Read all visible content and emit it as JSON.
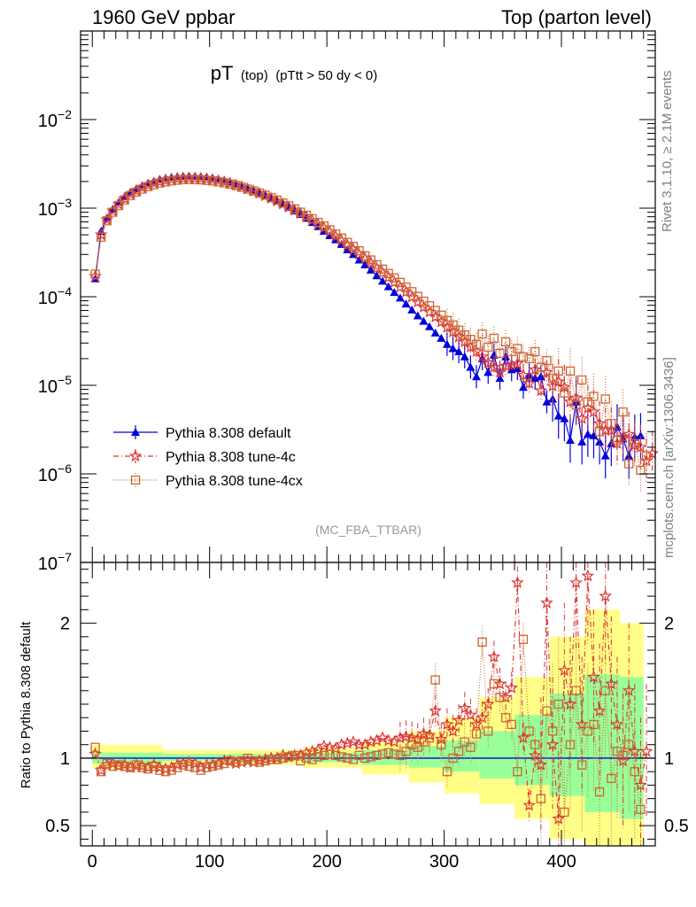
{
  "header": {
    "left": "1960 GeV ppbar",
    "right": "Top (parton level)",
    "side_rivet": "Rivet 3.1.10, ≥ 2.1M events",
    "side_mcplots": "mcplots.cern.ch [arXiv:1306.3436]"
  },
  "main": {
    "title_main": "pT",
    "title_sub": "(top)",
    "title_cut": "(pTtt > 50 dy < 0)",
    "watermark": "(MC_FBA_TTBAR)"
  },
  "ratio": {
    "ylabel": "Ratio to Pythia 8.308 default"
  },
  "colors": {
    "default": "#0000dd",
    "tune4c": "#dd3333",
    "tune4cx": "#cc6633",
    "band_green": "#99ff99",
    "band_yellow": "#ffff88"
  },
  "chart_data": [
    {
      "type": "line",
      "yscale": "log",
      "xlim": [
        -10,
        480
      ],
      "ylim": [
        1e-07,
        0.1
      ],
      "y_ticks": [
        "10^-7",
        "10^-6",
        "10^-5",
        "10^-4",
        "10^-3",
        "10^-2"
      ],
      "legend": "bottom-left",
      "x": [
        2.5,
        7.5,
        12.5,
        17.5,
        22.5,
        27.5,
        32.5,
        37.5,
        42.5,
        47.5,
        52.5,
        57.5,
        62.5,
        67.5,
        72.5,
        77.5,
        82.5,
        87.5,
        92.5,
        97.5,
        102.5,
        107.5,
        112.5,
        117.5,
        122.5,
        127.5,
        132.5,
        137.5,
        142.5,
        147.5,
        152.5,
        157.5,
        162.5,
        167.5,
        172.5,
        177.5,
        182.5,
        187.5,
        192.5,
        197.5,
        202.5,
        207.5,
        212.5,
        217.5,
        222.5,
        227.5,
        232.5,
        237.5,
        242.5,
        247.5,
        252.5,
        257.5,
        262.5,
        267.5,
        272.5,
        277.5,
        282.5,
        287.5,
        292.5,
        297.5,
        302.5,
        307.5,
        312.5,
        317.5,
        322.5,
        327.5,
        332.5,
        337.5,
        342.5,
        347.5,
        352.5,
        357.5,
        362.5,
        367.5,
        372.5,
        377.5,
        382.5,
        387.5,
        392.5,
        397.5,
        402.5,
        407.5,
        412.5,
        417.5,
        422.5,
        427.5,
        432.5,
        437.5,
        442.5,
        447.5,
        452.5,
        457.5,
        462.5,
        467.5,
        472.5,
        477.5
      ],
      "series": [
        {
          "name": "Pythia 8.308 default",
          "values": [
            0.00016,
            0.00055,
            0.00078,
            0.00098,
            0.00117,
            0.00135,
            0.00152,
            0.00166,
            0.0018,
            0.00192,
            0.00202,
            0.00212,
            0.00218,
            0.00224,
            0.00228,
            0.0023,
            0.00231,
            0.0023,
            0.00228,
            0.00225,
            0.0022,
            0.00214,
            0.00207,
            0.00199,
            0.0019,
            0.00181,
            0.00171,
            0.00161,
            0.00151,
            0.00141,
            0.00131,
            0.00121,
            0.00111,
            0.00102,
            0.00093,
            0.00085,
            0.00077,
            0.00069,
            0.00062,
            0.00055,
            0.00049,
            0.00044,
            0.00039,
            0.00034,
            0.0003,
            0.00026,
            0.00023,
            0.0002,
            0.000173,
            0.00015,
            0.00013,
            0.000112,
            9.7e-05,
            8.3e-05,
            7.1e-05,
            6.1e-05,
            5.3e-05,
            4.6e-05,
            3.9e-05,
            3.4e-05,
            2.9e-05,
            2.6e-05,
            2.4e-05,
            2.1e-05,
            1.6e-05,
            1.25e-05,
            2e-05,
            1.4e-05,
            2.2e-05,
            1.2e-05,
            2.1e-05,
            1.5e-05,
            1.55e-05,
            9.5e-06,
            1.3e-05,
            1.2e-05,
            1.25e-05,
            6.5e-06,
            7e-06,
            4.5e-06,
            4.2e-06,
            2.4e-06,
            6.5e-06,
            2.3e-06,
            2.8e-06,
            2.7e-06,
            2.3e-06,
            1.6e-06,
            2.2e-06,
            3.4e-06,
            2.5e-06,
            1.6e-06,
            2.6e-06,
            2.7e-06,
            null,
            null
          ]
        },
        {
          "name": "Pythia 8.308 tune-4c",
          "values": [
            0.00017,
            0.0005,
            0.00074,
            0.00093,
            0.00111,
            0.00128,
            0.00144,
            0.00157,
            0.0017,
            0.00181,
            0.00191,
            0.00198,
            0.00205,
            0.0021,
            0.00214,
            0.00216,
            0.00217,
            0.00216,
            0.00215,
            0.00212,
            0.00208,
            0.00203,
            0.00197,
            0.0019,
            0.00182,
            0.00174,
            0.00165,
            0.00156,
            0.00147,
            0.00138,
            0.00129,
            0.0012,
            0.00111,
            0.00103,
            0.00095,
            0.00087,
            0.0008,
            0.00073,
            0.00066,
            0.0006,
            0.00054,
            0.00048,
            0.00043,
            0.00038,
            0.00034,
            0.0003,
            0.00027,
            0.00024,
            0.00021,
            0.000185,
            0.000165,
            0.000145,
            0.000128,
            0.000113,
            9.9e-05,
            8.7e-05,
            7.6e-05,
            6.7e-05,
            5.9e-05,
            5.2e-05,
            4.5e-05,
            4e-05,
            3.5e-05,
            3.1e-05,
            2.7e-05,
            2.4e-05,
            2.1e-05,
            1.8e-05,
            1.6e-05,
            1.4e-05,
            1.65e-05,
            1.7e-05,
            1.75e-05,
            1.3e-05,
            1.05e-05,
            1.5e-05,
            8.7e-06,
            1.4e-05,
            9.8e-06,
            1.1e-05,
            9.5e-06,
            6.5e-06,
            7.2e-06,
            4.2e-06,
            5.5e-06,
            5e-06,
            3.7e-06,
            3.1e-06,
            3.1e-06,
            2.2e-06,
            2.6e-06,
            2.8e-06,
            2.1e-06,
            2e-06,
            1.4e-06,
            1.7e-06
          ]
        },
        {
          "name": "Pythia 8.308 tune-4cx",
          "values": [
            0.00018,
            0.00047,
            0.00072,
            0.0009,
            0.00107,
            0.00124,
            0.00139,
            0.00152,
            0.00164,
            0.00175,
            0.00184,
            0.00192,
            0.00198,
            0.00203,
            0.00207,
            0.0021,
            0.00211,
            0.0021,
            0.00209,
            0.00206,
            0.00203,
            0.00198,
            0.00193,
            0.00187,
            0.0018,
            0.00172,
            0.00164,
            0.00156,
            0.00148,
            0.0014,
            0.00131,
            0.00123,
            0.00114,
            0.00106,
            0.00098,
            0.0009,
            0.00083,
            0.00076,
            0.00069,
            0.00063,
            0.00057,
            0.00051,
            0.00046,
            0.00041,
            0.00037,
            0.00033,
            0.00029,
            0.00026,
            0.00023,
            0.000205,
            0.000183,
            0.000163,
            0.000145,
            0.000128,
            0.000114,
            0.000101,
            8.9e-05,
            7.9e-05,
            7e-05,
            6.2e-05,
            5.4e-05,
            4.8e-05,
            4.2e-05,
            3.7e-05,
            3.3e-05,
            2.9e-05,
            3.8e-05,
            2.7e-05,
            3.4e-05,
            2.3e-05,
            3.1e-05,
            2.4e-05,
            2.6e-05,
            2.1e-05,
            2e-05,
            2.4e-05,
            1.6e-05,
            1.9e-05,
            1.2e-05,
            1.45e-05,
            8.2e-06,
            1.45e-05,
            6e-06,
            1.15e-05,
            6.5e-06,
            7.5e-06,
            3e-06,
            7e-06,
            3.7e-06,
            2.4e-06,
            5e-06,
            1.3e-06,
            2.2e-06,
            1.1e-06,
            1.6e-06,
            null
          ]
        }
      ]
    },
    {
      "type": "line",
      "ylabel": "Ratio to Pythia 8.308 default",
      "xlim": [
        -10,
        480
      ],
      "ylim": [
        0.35,
        2.45
      ],
      "x_ticks": [
        0,
        100,
        200,
        300,
        400
      ],
      "y_ticks": [
        0.5,
        1,
        2
      ],
      "reference_line": 1,
      "bands": {
        "x_edges": [
          0,
          60,
          120,
          180,
          230,
          270,
          300,
          330,
          360,
          390,
          420,
          450,
          470
        ],
        "green_lo": [
          0.96,
          0.98,
          0.98,
          0.97,
          0.95,
          0.93,
          0.9,
          0.85,
          0.8,
          0.72,
          0.6,
          0.55
        ],
        "green_hi": [
          1.04,
          1.03,
          1.03,
          1.04,
          1.06,
          1.09,
          1.13,
          1.2,
          1.32,
          1.48,
          1.62,
          1.6
        ],
        "yellow_lo": [
          0.92,
          0.95,
          0.95,
          0.93,
          0.88,
          0.82,
          0.74,
          0.66,
          0.55,
          0.4,
          0.35,
          0.35
        ],
        "yellow_hi": [
          1.1,
          1.06,
          1.06,
          1.08,
          1.12,
          1.2,
          1.3,
          1.45,
          1.6,
          1.9,
          2.1,
          2.0
        ]
      },
      "series": [
        {
          "name": "Pythia 8.308 tune-4c",
          "x": [
            2.5,
            7.5,
            12.5,
            17.5,
            22.5,
            27.5,
            32.5,
            37.5,
            42.5,
            47.5,
            52.5,
            57.5,
            62.5,
            67.5,
            72.5,
            77.5,
            82.5,
            87.5,
            92.5,
            97.5,
            102.5,
            107.5,
            112.5,
            117.5,
            122.5,
            127.5,
            132.5,
            137.5,
            142.5,
            147.5,
            152.5,
            157.5,
            162.5,
            167.5,
            172.5,
            177.5,
            182.5,
            187.5,
            192.5,
            197.5,
            202.5,
            207.5,
            212.5,
            217.5,
            222.5,
            227.5,
            232.5,
            237.5,
            242.5,
            247.5,
            252.5,
            257.5,
            262.5,
            267.5,
            272.5,
            277.5,
            282.5,
            287.5,
            292.5,
            297.5,
            302.5,
            307.5,
            312.5,
            317.5,
            322.5,
            327.5,
            332.5,
            337.5,
            342.5,
            347.5,
            352.5,
            357.5,
            362.5,
            367.5,
            372.5,
            377.5,
            382.5,
            387.5,
            392.5,
            397.5,
            402.5,
            407.5,
            412.5,
            417.5,
            422.5,
            427.5,
            432.5,
            437.5,
            442.5,
            447.5,
            452.5,
            457.5,
            462.5,
            467.5,
            472.5
          ],
          "values": [
            1.03,
            0.91,
            0.95,
            0.96,
            0.94,
            0.95,
            0.93,
            0.95,
            0.94,
            0.93,
            0.95,
            0.93,
            0.92,
            0.93,
            0.95,
            0.96,
            0.97,
            0.96,
            0.93,
            0.95,
            0.95,
            0.96,
            0.98,
            0.98,
            0.96,
            0.97,
            0.98,
            0.97,
            0.98,
            0.99,
            1.0,
            1.0,
            1.02,
            1.01,
            1.02,
            1.02,
            1.04,
            1.05,
            1.06,
            1.09,
            1.08,
            1.07,
            1.1,
            1.11,
            1.12,
            1.1,
            1.1,
            1.12,
            1.13,
            1.15,
            1.13,
            1.12,
            1.15,
            1.16,
            1.15,
            1.14,
            1.18,
            1.17,
            1.35,
            1.14,
            1.25,
            1.2,
            1.28,
            1.37,
            1.32,
            1.25,
            1.3,
            1.4,
            1.75,
            1.55,
            1.45,
            1.52,
            2.3,
            1.15,
            0.65,
            1.02,
            0.95,
            2.15,
            1.1,
            0.55,
            1.65,
            1.4,
            2.3,
            1.25,
            2.35,
            1.6,
            1.35,
            2.2,
            1.55,
            1.25,
            0.98,
            1.5,
            1.05,
            0.8,
            1.05
          ]
        },
        {
          "name": "Pythia 8.308 tune-4cx",
          "x": [
            2.5,
            7.5,
            12.5,
            17.5,
            22.5,
            27.5,
            32.5,
            37.5,
            42.5,
            47.5,
            52.5,
            57.5,
            62.5,
            67.5,
            72.5,
            77.5,
            82.5,
            87.5,
            92.5,
            97.5,
            102.5,
            107.5,
            112.5,
            117.5,
            122.5,
            127.5,
            132.5,
            137.5,
            142.5,
            147.5,
            152.5,
            157.5,
            162.5,
            167.5,
            172.5,
            177.5,
            182.5,
            187.5,
            192.5,
            197.5,
            202.5,
            207.5,
            212.5,
            217.5,
            222.5,
            227.5,
            232.5,
            237.5,
            242.5,
            247.5,
            252.5,
            257.5,
            262.5,
            267.5,
            272.5,
            277.5,
            282.5,
            287.5,
            292.5,
            297.5,
            302.5,
            307.5,
            312.5,
            317.5,
            322.5,
            327.5,
            332.5,
            337.5,
            342.5,
            347.5,
            352.5,
            357.5,
            362.5,
            367.5,
            372.5,
            377.5,
            382.5,
            387.5,
            392.5,
            397.5,
            402.5,
            407.5,
            412.5,
            417.5,
            422.5,
            427.5,
            432.5,
            437.5,
            442.5,
            447.5,
            452.5,
            457.5,
            462.5,
            467.5
          ],
          "values": [
            1.08,
            0.9,
            0.96,
            0.94,
            0.95,
            0.94,
            0.93,
            0.95,
            0.93,
            0.92,
            0.94,
            0.91,
            0.9,
            0.91,
            0.93,
            0.95,
            0.94,
            0.93,
            0.91,
            0.93,
            0.94,
            0.95,
            0.96,
            0.98,
            0.97,
            0.98,
            1.0,
            0.98,
            0.97,
            0.98,
            0.99,
            0.99,
            1.0,
            1.01,
            1.02,
            0.98,
            1.0,
            0.99,
            1.01,
            1.02,
            1.03,
            1.02,
            1.01,
            1.0,
            0.99,
            1.02,
            1.0,
            1.01,
            1.02,
            1.03,
            1.04,
            1.03,
            1.02,
            1.05,
            1.1,
            1.08,
            1.12,
            1.15,
            1.58,
            1.1,
            0.9,
            1.0,
            1.05,
            1.12,
            1.08,
            1.18,
            1.86,
            1.2,
            1.55,
            1.45,
            1.3,
            1.25,
            0.9,
            1.88,
            1.2,
            1.1,
            0.7,
            1.35,
            1.2,
            1.4,
            0.6,
            1.1,
            1.5,
            0.95,
            1.2,
            1.25,
            0.75,
            1.5,
            0.85,
            1.05,
            1.02,
            1.1,
            0.9,
            0.62
          ]
        }
      ]
    }
  ]
}
